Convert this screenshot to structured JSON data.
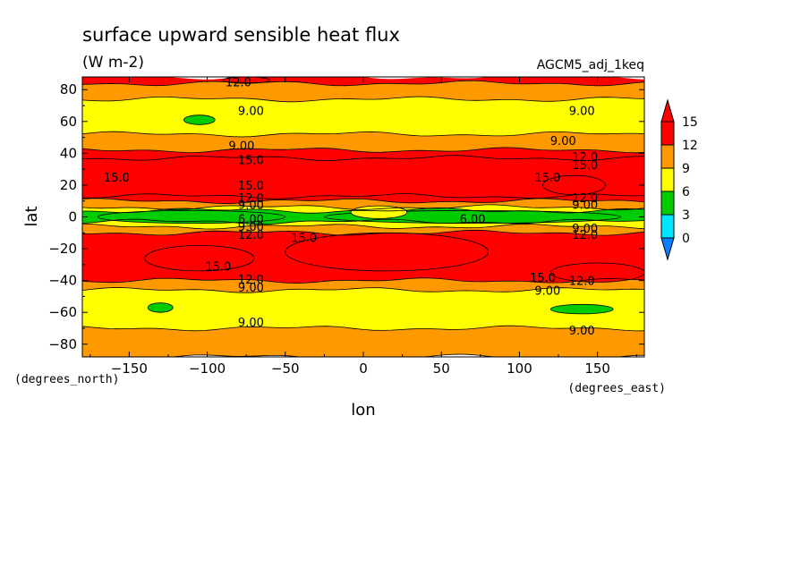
{
  "chart_data": {
    "type": "heatmap",
    "title": "surface upward sensible heat flux",
    "units": "(W m-2)",
    "dataset": "AGCM5_adj_1keq",
    "xlabel": "lon",
    "ylabel": "lat",
    "x_unit_label": "(degrees_east)",
    "y_unit_label": "(degrees_north)",
    "xlim": [
      -180,
      180
    ],
    "ylim": [
      -88,
      88
    ],
    "x_ticks": [
      -150,
      -100,
      -50,
      0,
      50,
      100,
      150
    ],
    "x_tick_labels": [
      "−150",
      "−100",
      "−50",
      "0",
      "50",
      "100",
      "150"
    ],
    "y_ticks": [
      -80,
      -60,
      -40,
      -20,
      0,
      20,
      40,
      60,
      80
    ],
    "y_tick_labels": [
      "−80",
      "−60",
      "−40",
      "−20",
      "0",
      "20",
      "40",
      "60",
      "80"
    ],
    "levels": [
      0,
      3,
      6,
      9,
      12,
      15
    ],
    "level_labels": [
      "0",
      "3",
      "6",
      "9",
      "12",
      "15"
    ],
    "colors": [
      "#0a7fff",
      "#00e5ff",
      "#00cc00",
      "#ffff00",
      "#ff9900",
      "#ff0000",
      "#ff0000"
    ],
    "zonal_bands": [
      {
        "lat_from": 88,
        "lat_to": 84,
        "value": 12.5
      },
      {
        "lat_from": 84,
        "lat_to": 74,
        "value": 10.0
      },
      {
        "lat_from": 74,
        "lat_to": 52,
        "value": 7.5
      },
      {
        "lat_from": 52,
        "lat_to": 42,
        "value": 9.5
      },
      {
        "lat_from": 42,
        "lat_to": 37,
        "value": 13.0
      },
      {
        "lat_from": 37,
        "lat_to": 13,
        "value": 15.5
      },
      {
        "lat_from": 13,
        "lat_to": 10,
        "value": 13.0
      },
      {
        "lat_from": 10,
        "lat_to": 6,
        "value": 10.0
      },
      {
        "lat_from": 6,
        "lat_to": 4,
        "value": 7.0
      },
      {
        "lat_from": 4,
        "lat_to": -3,
        "value": 4.5
      },
      {
        "lat_from": -3,
        "lat_to": -6,
        "value": 7.0
      },
      {
        "lat_from": -6,
        "lat_to": -10,
        "value": 10.0
      },
      {
        "lat_from": -10,
        "lat_to": -40,
        "value": 13.5
      },
      {
        "lat_from": -40,
        "lat_to": -46,
        "value": 10.0
      },
      {
        "lat_from": -46,
        "lat_to": -70,
        "value": 7.5
      },
      {
        "lat_from": -70,
        "lat_to": -88,
        "value": 10.0
      }
    ],
    "patches": [
      {
        "lon": -105,
        "lat": 61,
        "rlon": 10,
        "rlat": 3,
        "value": 4.5
      },
      {
        "lon": -130,
        "lat": -57,
        "rlon": 8,
        "rlat": 3,
        "value": 4.5
      },
      {
        "lon": 140,
        "lat": -58,
        "rlon": 20,
        "rlat": 3,
        "value": 4.5
      },
      {
        "lon": 70,
        "lat": 0,
        "rlon": 95,
        "rlat": 4,
        "value": 4.5
      },
      {
        "lon": -110,
        "lat": 0,
        "rlon": 60,
        "rlat": 4,
        "value": 4.5
      },
      {
        "lon": 10,
        "lat": 3,
        "rlon": 18,
        "rlat": 4,
        "value": 7.0
      },
      {
        "lon": 15,
        "lat": -22,
        "rlon": 65,
        "rlat": 12,
        "value": 15.5
      },
      {
        "lon": -105,
        "lat": -26,
        "rlon": 35,
        "rlat": 8,
        "value": 15.5
      },
      {
        "lon": 135,
        "lat": 20,
        "rlon": 20,
        "rlat": 6,
        "value": 13.0
      },
      {
        "lon": 150,
        "lat": -35,
        "rlon": 30,
        "rlat": 6,
        "value": 13.0
      },
      {
        "lon": -75,
        "lat": 86,
        "rlon": 15,
        "rlat": 2,
        "value": 15.5
      }
    ],
    "contour_labels": [
      {
        "text": "12.0",
        "lon": -80,
        "lat": 85
      },
      {
        "text": "9.00",
        "lon": -72,
        "lat": 67
      },
      {
        "text": "9.00",
        "lon": 140,
        "lat": 67
      },
      {
        "text": "9.00",
        "lon": -78,
        "lat": 45
      },
      {
        "text": "9.00",
        "lon": 128,
        "lat": 48
      },
      {
        "text": "15.0",
        "lon": -72,
        "lat": 36
      },
      {
        "text": "12.0",
        "lon": 142,
        "lat": 38
      },
      {
        "text": "15.0",
        "lon": 142,
        "lat": 33
      },
      {
        "text": "15.0",
        "lon": -158,
        "lat": 25
      },
      {
        "text": "15.0",
        "lon": 118,
        "lat": 25
      },
      {
        "text": "15.0",
        "lon": -72,
        "lat": 20
      },
      {
        "text": "12.0",
        "lon": -72,
        "lat": 12
      },
      {
        "text": "9.00",
        "lon": -72,
        "lat": 8
      },
      {
        "text": "12.0",
        "lon": 142,
        "lat": 12
      },
      {
        "text": "9.00",
        "lon": 142,
        "lat": 8
      },
      {
        "text": "6.00",
        "lon": -72,
        "lat": -1
      },
      {
        "text": "6.00",
        "lon": 70,
        "lat": -1
      },
      {
        "text": "9.00",
        "lon": -72,
        "lat": -6
      },
      {
        "text": "12.0",
        "lon": -72,
        "lat": -11
      },
      {
        "text": "15.0",
        "lon": -38,
        "lat": -13
      },
      {
        "text": "9.00",
        "lon": 142,
        "lat": -7
      },
      {
        "text": "12.0",
        "lon": 142,
        "lat": -11
      },
      {
        "text": "15.0",
        "lon": -93,
        "lat": -31
      },
      {
        "text": "15.0",
        "lon": 115,
        "lat": -38
      },
      {
        "text": "12.0",
        "lon": -72,
        "lat": -39
      },
      {
        "text": "12.0",
        "lon": 140,
        "lat": -40
      },
      {
        "text": "9.00",
        "lon": -72,
        "lat": -44
      },
      {
        "text": "9.00",
        "lon": 118,
        "lat": -46
      },
      {
        "text": "9.00",
        "lon": -72,
        "lat": -66
      },
      {
        "text": "9.00",
        "lon": 140,
        "lat": -71
      }
    ]
  }
}
